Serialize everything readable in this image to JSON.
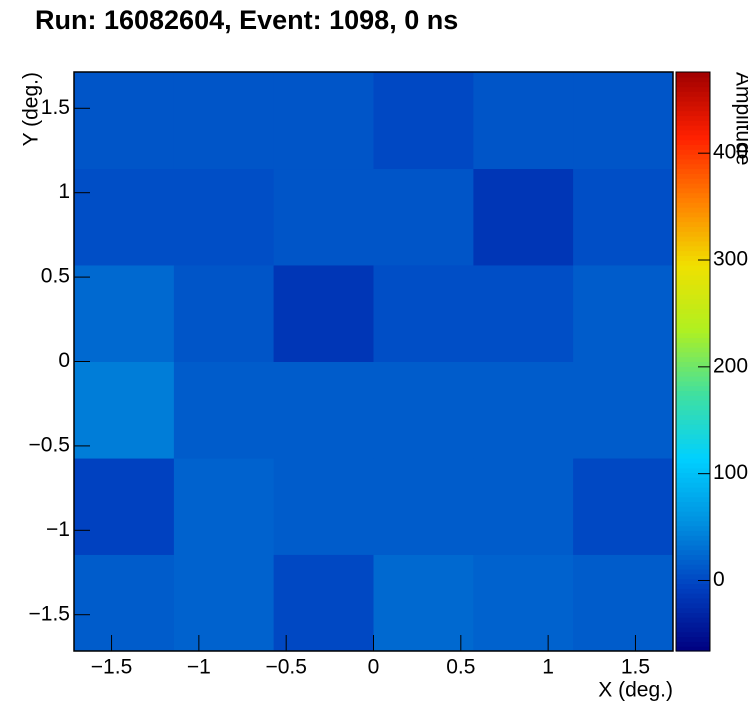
{
  "chart_data": {
    "type": "heatmap",
    "title": "Run: 16082604, Event: 1098, 0 ns",
    "x_label": "X (deg.)",
    "y_label": "Y (deg.)",
    "colorbar_label": "Amplitude",
    "xbins": [
      -1.715,
      -1.143,
      -0.572,
      0,
      0.572,
      1.143,
      1.715
    ],
    "ybins": [
      -1.715,
      -1.143,
      -0.572,
      0,
      0.572,
      1.143,
      1.715
    ],
    "z": [
      [
        15,
        20,
        0,
        25,
        20,
        15
      ],
      [
        -5,
        20,
        15,
        15,
        15,
        0
      ],
      [
        40,
        15,
        15,
        15,
        15,
        15
      ],
      [
        25,
        10,
        -15,
        5,
        5,
        15
      ],
      [
        5,
        5,
        10,
        10,
        -15,
        5
      ],
      [
        10,
        10,
        10,
        0,
        10,
        10
      ]
    ],
    "xlim": [
      -1.715,
      1.715
    ],
    "ylim": [
      -1.715,
      1.715
    ],
    "zlim": [
      -66,
      476
    ],
    "xticks": [
      {
        "value": -1.5,
        "label": "−1.5"
      },
      {
        "value": -1,
        "label": "−1"
      },
      {
        "value": -0.5,
        "label": "−0.5"
      },
      0,
      0.5,
      1,
      1.5
    ],
    "yticks": [
      {
        "value": -1.5,
        "label": "−1.5"
      },
      {
        "value": -1,
        "label": "−1"
      },
      {
        "value": -0.5,
        "label": "−0.5"
      },
      0,
      0.5,
      1,
      1.5
    ],
    "zticks": [
      0,
      100,
      200,
      300,
      400
    ],
    "colormap": [
      "#000080",
      "#0040c0",
      "#0090e0",
      "#00d0ff",
      "#40e0a0",
      "#b0f020",
      "#f0e000",
      "#ff8000",
      "#ff2000",
      "#a00000"
    ]
  }
}
